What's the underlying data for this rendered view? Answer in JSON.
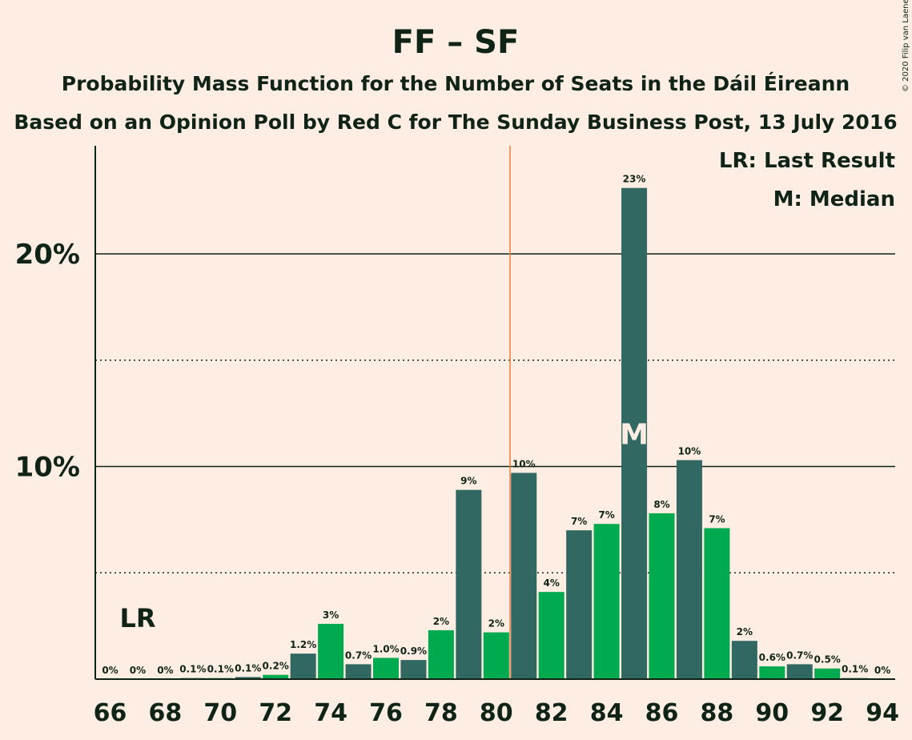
{
  "chart_data": {
    "type": "bar",
    "title": "FF – SF",
    "subtitle1": "Probability Mass Function for the Number of Seats in the Dáil Éireann",
    "subtitle2": "Based on an Opinion Poll by Red C for The Sunday Business Post, 13 July 2016",
    "copyright": "© 2020 Filip van Laenen",
    "legend": {
      "lr": "LR: Last Result",
      "median": "M: Median"
    },
    "lr_label": "LR",
    "median_label": "M",
    "last_result_seat": 67,
    "majority_line_seat": 80.5,
    "median_seat": 85,
    "ylim": [
      0,
      25
    ],
    "yticks": [
      {
        "value": 10,
        "label": "10%"
      },
      {
        "value": 20,
        "label": "20%"
      }
    ],
    "dotted_lines": [
      5,
      15
    ],
    "xticks": [
      "66",
      "68",
      "70",
      "72",
      "74",
      "76",
      "78",
      "80",
      "82",
      "84",
      "86",
      "88",
      "90",
      "92",
      "94"
    ],
    "seats": [
      66,
      67,
      68,
      69,
      70,
      71,
      72,
      73,
      74,
      75,
      76,
      77,
      78,
      79,
      80,
      81,
      82,
      83,
      84,
      85,
      86,
      87,
      88,
      89,
      90,
      91,
      92,
      93,
      94
    ],
    "values": [
      0,
      0,
      0,
      0.05,
      0.05,
      0.1,
      0.2,
      1.2,
      2.6,
      0.7,
      1.0,
      0.9,
      2.3,
      8.9,
      2.2,
      9.7,
      4.1,
      7.0,
      7.3,
      23.1,
      7.8,
      10.3,
      7.1,
      1.8,
      0.6,
      0.7,
      0.5,
      0.05,
      0
    ],
    "labels": [
      "0%",
      "0%",
      "0%",
      "0.1%",
      "0.1%",
      "0.1%",
      "0.2%",
      "1.2%",
      "3%",
      "0.7%",
      "1.0%",
      "0.9%",
      "2%",
      "9%",
      "2%",
      "10%",
      "4%",
      "7%",
      "7%",
      "23%",
      "8%",
      "10%",
      "7%",
      "2%",
      "0.6%",
      "0.7%",
      "0.5%",
      "0.1%",
      "0%"
    ],
    "colors": {
      "dark": "#316862",
      "light": "#00AA4F",
      "background": "#FDEDE2",
      "majority": "#F07E3C",
      "text": "#0F2416"
    }
  }
}
